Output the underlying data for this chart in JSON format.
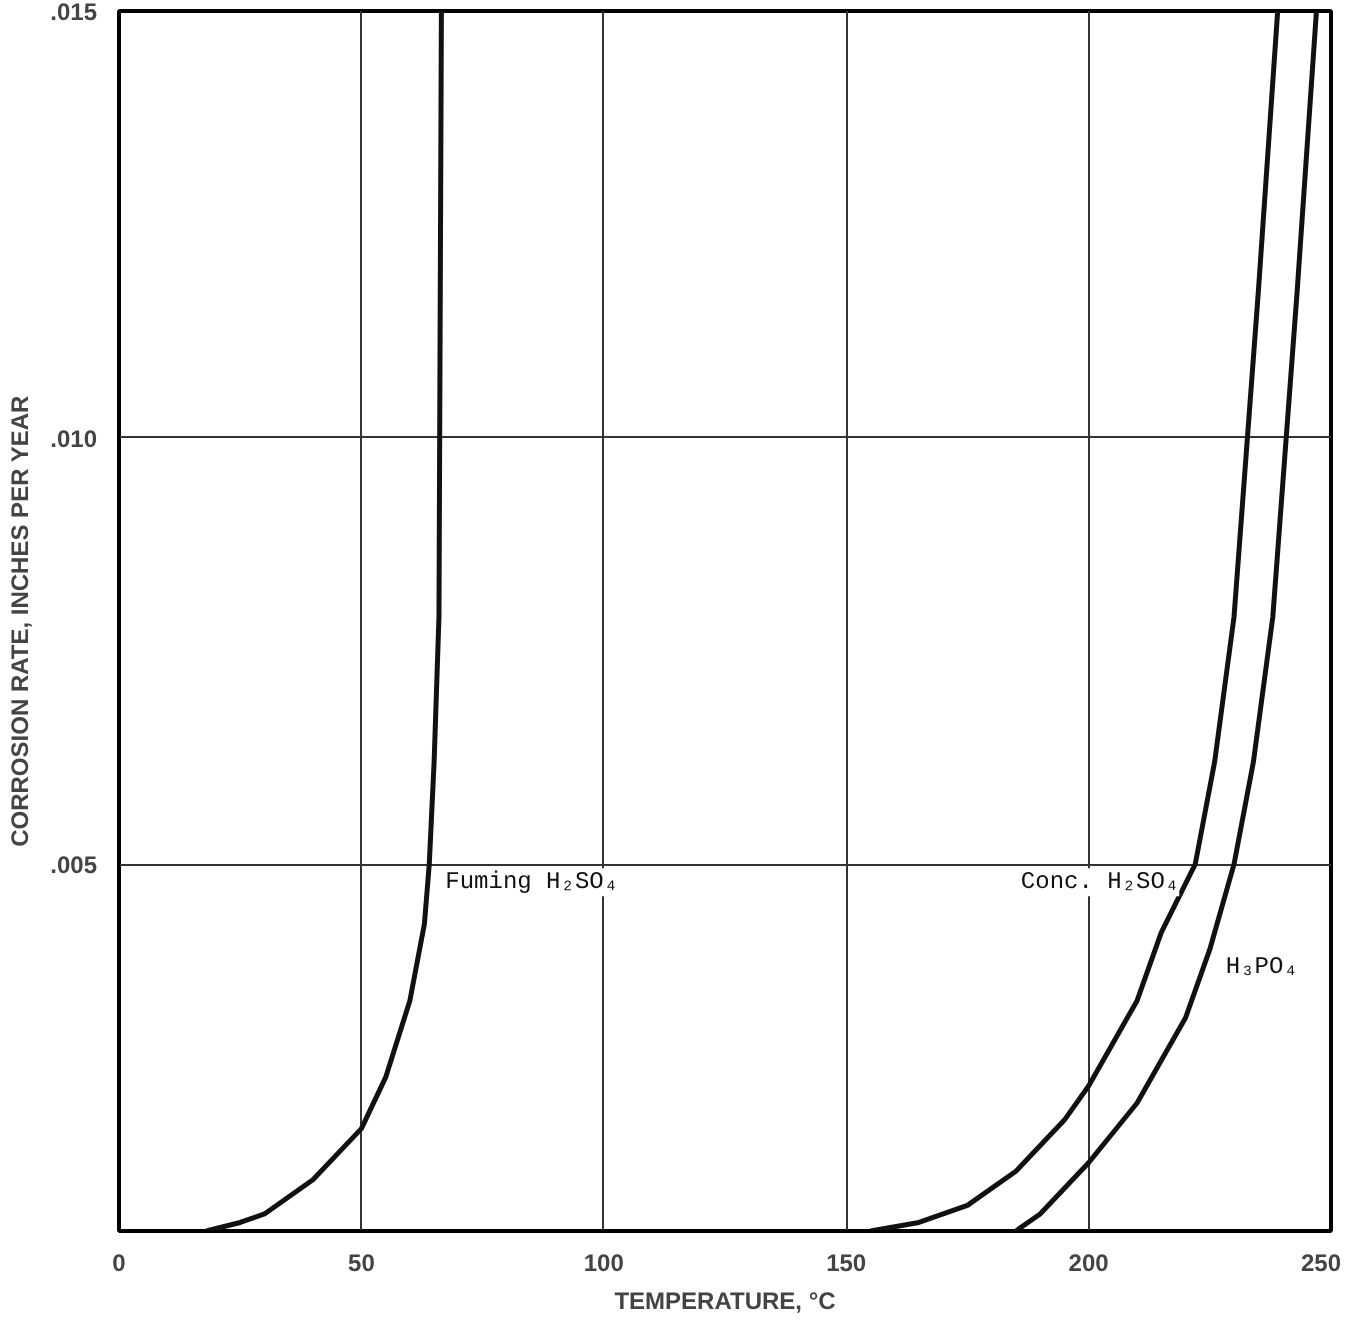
{
  "chart_data": {
    "type": "line",
    "xlabel": "TEMPERATURE, °C",
    "ylabel": "CORROSION RATE, INCHES PER YEAR",
    "xlim": [
      0,
      250
    ],
    "ylim": [
      0.0007,
      0.015
    ],
    "xticks": [
      0,
      50,
      100,
      150,
      200,
      250
    ],
    "yticks": [
      {
        "value": 0.005,
        "label": ".005"
      },
      {
        "value": 0.01,
        "label": ".010"
      },
      {
        "value": 0.015,
        "label": ".015"
      }
    ],
    "grid": true,
    "marker": "none",
    "line_style": "solid",
    "series": [
      {
        "name": "Fuming H₂SO₄",
        "color": "#111111",
        "x": [
          18,
          25,
          30,
          40,
          50,
          55,
          60,
          63,
          64,
          65,
          66,
          66.5
        ],
        "values": [
          0.0007,
          0.0008,
          0.0009,
          0.0013,
          0.0019,
          0.0025,
          0.0034,
          0.0043,
          0.005,
          0.0062,
          0.0079,
          0.015
        ]
      },
      {
        "name": "Conc. H₂SO₄",
        "color": "#111111",
        "x": [
          155,
          165,
          175,
          185,
          195,
          200,
          210,
          215,
          222,
          226,
          230,
          235,
          239
        ],
        "values": [
          0.0007,
          0.0008,
          0.001,
          0.0014,
          0.002,
          0.0024,
          0.0034,
          0.0042,
          0.005,
          0.0062,
          0.0079,
          0.0117,
          0.015
        ]
      },
      {
        "name": "H₃PO₄",
        "color": "#111111",
        "x": [
          185,
          190,
          200,
          210,
          220,
          225,
          230,
          234,
          238,
          243,
          247
        ],
        "values": [
          0.0007,
          0.0009,
          0.0015,
          0.0022,
          0.0032,
          0.004,
          0.005,
          0.0062,
          0.0079,
          0.0117,
          0.015
        ]
      }
    ]
  }
}
